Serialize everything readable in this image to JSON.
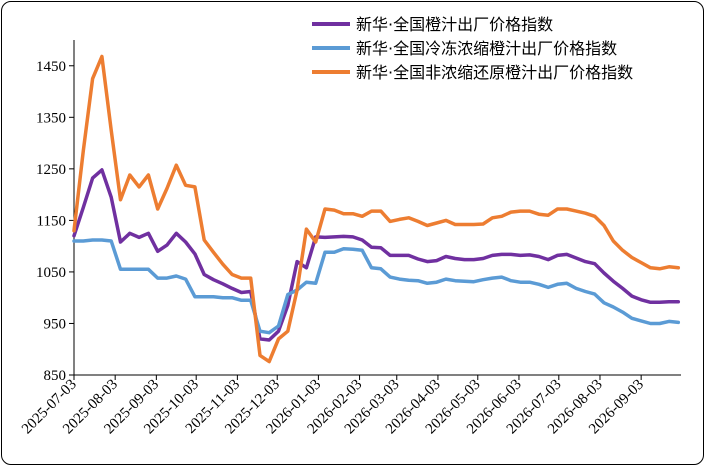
{
  "chart_data": {
    "type": "line",
    "title": "",
    "xlabel": "",
    "ylabel": "",
    "ylim": [
      850,
      1500
    ],
    "yticks": [
      850,
      950,
      1050,
      1150,
      1250,
      1350,
      1450
    ],
    "grid": false,
    "legend_position": "top-right",
    "x_tick_labels": [
      "2025-07-03",
      "2025-08-03",
      "2025-09-03",
      "2025-10-03",
      "2025-11-03",
      "2025-12-03",
      "2026-01-03",
      "2026-02-03",
      "2026-03-03",
      "2026-04-03",
      "2026-05-03",
      "2026-06-03",
      "2026-07-03",
      "2026-08-03",
      "2026-09-03"
    ],
    "x_start": "2025-07-03",
    "x_end": "2026-10-03",
    "series": [
      {
        "name": "新华·全国橙汁出厂价格指数",
        "color": "#7030A0",
        "points": [
          [
            "2025-07-03",
            1120
          ],
          [
            "2025-07-10",
            1175
          ],
          [
            "2025-07-17",
            1232
          ],
          [
            "2025-07-24",
            1248
          ],
          [
            "2025-07-31",
            1195
          ],
          [
            "2025-08-07",
            1108
          ],
          [
            "2025-08-14",
            1125
          ],
          [
            "2025-08-21",
            1117
          ],
          [
            "2025-08-28",
            1125
          ],
          [
            "2025-09-04",
            1090
          ],
          [
            "2025-09-11",
            1102
          ],
          [
            "2025-09-18",
            1125
          ],
          [
            "2025-09-25",
            1108
          ],
          [
            "2025-10-02",
            1085
          ],
          [
            "2025-10-09",
            1045
          ],
          [
            "2025-10-16",
            1035
          ],
          [
            "2025-10-23",
            1027
          ],
          [
            "2025-10-30",
            1018
          ],
          [
            "2025-11-06",
            1010
          ],
          [
            "2025-11-13",
            1012
          ],
          [
            "2025-11-20",
            920
          ],
          [
            "2025-11-27",
            918
          ],
          [
            "2025-12-04",
            935
          ],
          [
            "2025-12-11",
            985
          ],
          [
            "2025-12-18",
            1070
          ],
          [
            "2025-12-25",
            1058
          ],
          [
            "2026-01-01",
            1118
          ],
          [
            "2026-01-08",
            1117
          ],
          [
            "2026-01-15",
            1118
          ],
          [
            "2026-01-22",
            1119
          ],
          [
            "2026-01-29",
            1118
          ],
          [
            "2026-02-05",
            1112
          ],
          [
            "2026-02-12",
            1098
          ],
          [
            "2026-02-19",
            1097
          ],
          [
            "2026-02-26",
            1082
          ],
          [
            "2026-03-05",
            1082
          ],
          [
            "2026-03-12",
            1082
          ],
          [
            "2026-03-19",
            1075
          ],
          [
            "2026-03-26",
            1070
          ],
          [
            "2026-04-02",
            1072
          ],
          [
            "2026-04-09",
            1080
          ],
          [
            "2026-04-16",
            1076
          ],
          [
            "2026-04-23",
            1074
          ],
          [
            "2026-04-30",
            1074
          ],
          [
            "2026-05-07",
            1076
          ],
          [
            "2026-05-14",
            1082
          ],
          [
            "2026-05-21",
            1084
          ],
          [
            "2026-05-28",
            1084
          ],
          [
            "2026-06-04",
            1082
          ],
          [
            "2026-06-11",
            1083
          ],
          [
            "2026-06-18",
            1080
          ],
          [
            "2026-06-25",
            1074
          ],
          [
            "2026-07-02",
            1082
          ],
          [
            "2026-07-09",
            1084
          ],
          [
            "2026-07-16",
            1077
          ],
          [
            "2026-07-23",
            1070
          ],
          [
            "2026-07-30",
            1066
          ],
          [
            "2026-08-06",
            1048
          ],
          [
            "2026-08-13",
            1032
          ],
          [
            "2026-08-20",
            1018
          ],
          [
            "2026-08-27",
            1003
          ],
          [
            "2026-09-03",
            996
          ],
          [
            "2026-09-10",
            991
          ],
          [
            "2026-09-17",
            991
          ],
          [
            "2026-09-24",
            992
          ],
          [
            "2026-10-01",
            992
          ]
        ]
      },
      {
        "name": "新华·全国冷冻浓缩橙汁出厂价格指数",
        "color": "#5B9BD5",
        "points": [
          [
            "2025-07-03",
            1110
          ],
          [
            "2025-07-10",
            1110
          ],
          [
            "2025-07-17",
            1112
          ],
          [
            "2025-07-24",
            1112
          ],
          [
            "2025-07-31",
            1110
          ],
          [
            "2025-08-07",
            1055
          ],
          [
            "2025-08-14",
            1055
          ],
          [
            "2025-08-21",
            1055
          ],
          [
            "2025-08-28",
            1055
          ],
          [
            "2025-09-04",
            1038
          ],
          [
            "2025-09-11",
            1038
          ],
          [
            "2025-09-18",
            1042
          ],
          [
            "2025-09-25",
            1036
          ],
          [
            "2025-10-02",
            1002
          ],
          [
            "2025-10-09",
            1002
          ],
          [
            "2025-10-16",
            1002
          ],
          [
            "2025-10-23",
            1000
          ],
          [
            "2025-10-30",
            1000
          ],
          [
            "2025-11-06",
            995
          ],
          [
            "2025-11-13",
            995
          ],
          [
            "2025-11-20",
            935
          ],
          [
            "2025-11-27",
            932
          ],
          [
            "2025-12-04",
            945
          ],
          [
            "2025-12-11",
            1006
          ],
          [
            "2025-12-18",
            1015
          ],
          [
            "2025-12-25",
            1030
          ],
          [
            "2026-01-01",
            1028
          ],
          [
            "2026-01-08",
            1088
          ],
          [
            "2026-01-15",
            1088
          ],
          [
            "2026-01-22",
            1095
          ],
          [
            "2026-01-29",
            1094
          ],
          [
            "2026-02-05",
            1092
          ],
          [
            "2026-02-12",
            1058
          ],
          [
            "2026-02-19",
            1056
          ],
          [
            "2026-02-26",
            1040
          ],
          [
            "2026-03-05",
            1036
          ],
          [
            "2026-03-12",
            1034
          ],
          [
            "2026-03-19",
            1033
          ],
          [
            "2026-03-26",
            1028
          ],
          [
            "2026-04-02",
            1030
          ],
          [
            "2026-04-09",
            1036
          ],
          [
            "2026-04-16",
            1033
          ],
          [
            "2026-04-23",
            1032
          ],
          [
            "2026-04-30",
            1031
          ],
          [
            "2026-05-07",
            1035
          ],
          [
            "2026-05-14",
            1038
          ],
          [
            "2026-05-21",
            1040
          ],
          [
            "2026-05-28",
            1033
          ],
          [
            "2026-06-04",
            1030
          ],
          [
            "2026-06-11",
            1030
          ],
          [
            "2026-06-18",
            1026
          ],
          [
            "2026-06-25",
            1020
          ],
          [
            "2026-07-02",
            1026
          ],
          [
            "2026-07-09",
            1028
          ],
          [
            "2026-07-16",
            1018
          ],
          [
            "2026-07-23",
            1012
          ],
          [
            "2026-07-30",
            1007
          ],
          [
            "2026-08-06",
            990
          ],
          [
            "2026-08-13",
            982
          ],
          [
            "2026-08-20",
            972
          ],
          [
            "2026-08-27",
            960
          ],
          [
            "2026-09-03",
            955
          ],
          [
            "2026-09-10",
            950
          ],
          [
            "2026-09-17",
            950
          ],
          [
            "2026-09-24",
            954
          ],
          [
            "2026-10-01",
            952
          ]
        ]
      },
      {
        "name": "新华·全国非浓缩还原橙汁出厂价格指数",
        "color": "#ED7D31",
        "points": [
          [
            "2025-07-03",
            1130
          ],
          [
            "2025-07-10",
            1285
          ],
          [
            "2025-07-17",
            1425
          ],
          [
            "2025-07-24",
            1468
          ],
          [
            "2025-07-31",
            1325
          ],
          [
            "2025-08-07",
            1190
          ],
          [
            "2025-08-14",
            1238
          ],
          [
            "2025-08-21",
            1215
          ],
          [
            "2025-08-28",
            1238
          ],
          [
            "2025-09-04",
            1172
          ],
          [
            "2025-09-11",
            1212
          ],
          [
            "2025-09-18",
            1257
          ],
          [
            "2025-09-25",
            1218
          ],
          [
            "2025-10-02",
            1215
          ],
          [
            "2025-10-09",
            1112
          ],
          [
            "2025-10-16",
            1088
          ],
          [
            "2025-10-23",
            1065
          ],
          [
            "2025-10-30",
            1045
          ],
          [
            "2025-11-06",
            1038
          ],
          [
            "2025-11-13",
            1038
          ],
          [
            "2025-11-20",
            888
          ],
          [
            "2025-11-27",
            876
          ],
          [
            "2025-12-04",
            920
          ],
          [
            "2025-12-11",
            935
          ],
          [
            "2025-12-18",
            1015
          ],
          [
            "2025-12-25",
            1133
          ],
          [
            "2026-01-01",
            1108
          ],
          [
            "2026-01-08",
            1172
          ],
          [
            "2026-01-15",
            1170
          ],
          [
            "2026-01-22",
            1163
          ],
          [
            "2026-01-29",
            1163
          ],
          [
            "2026-02-05",
            1158
          ],
          [
            "2026-02-12",
            1168
          ],
          [
            "2026-02-19",
            1168
          ],
          [
            "2026-02-26",
            1148
          ],
          [
            "2026-03-05",
            1152
          ],
          [
            "2026-03-12",
            1155
          ],
          [
            "2026-03-19",
            1148
          ],
          [
            "2026-03-26",
            1140
          ],
          [
            "2026-04-02",
            1145
          ],
          [
            "2026-04-09",
            1150
          ],
          [
            "2026-04-16",
            1142
          ],
          [
            "2026-04-23",
            1142
          ],
          [
            "2026-04-30",
            1142
          ],
          [
            "2026-05-07",
            1143
          ],
          [
            "2026-05-14",
            1155
          ],
          [
            "2026-05-21",
            1158
          ],
          [
            "2026-05-28",
            1166
          ],
          [
            "2026-06-04",
            1168
          ],
          [
            "2026-06-11",
            1168
          ],
          [
            "2026-06-18",
            1162
          ],
          [
            "2026-06-25",
            1160
          ],
          [
            "2026-07-02",
            1172
          ],
          [
            "2026-07-09",
            1172
          ],
          [
            "2026-07-16",
            1168
          ],
          [
            "2026-07-23",
            1164
          ],
          [
            "2026-07-30",
            1158
          ],
          [
            "2026-08-06",
            1140
          ],
          [
            "2026-08-13",
            1110
          ],
          [
            "2026-08-20",
            1092
          ],
          [
            "2026-08-27",
            1078
          ],
          [
            "2026-09-03",
            1068
          ],
          [
            "2026-09-10",
            1058
          ],
          [
            "2026-09-17",
            1056
          ],
          [
            "2026-09-24",
            1060
          ],
          [
            "2026-10-01",
            1058
          ]
        ]
      }
    ]
  }
}
